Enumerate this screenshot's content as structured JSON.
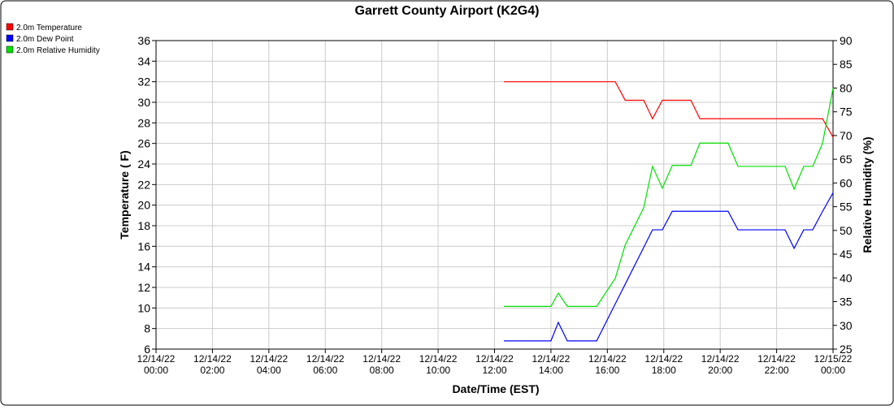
{
  "chart_data": {
    "type": "line",
    "title": "Garrett County Airport (K2G4)",
    "x_label": "Date/Time (EST)",
    "y_label": "Temperature ( F)",
    "y2_label": "Relative Humidity (%)",
    "x": [
      12.33,
      14.0,
      14.26,
      14.58,
      15.62,
      16.28,
      16.63,
      17.29,
      17.6,
      17.95,
      18.3,
      18.96,
      19.28,
      20.28,
      20.63,
      22.3,
      22.62,
      22.96,
      23.28,
      23.63,
      24
    ],
    "series": [
      {
        "name": "2.0m Temperature",
        "color": "#ff0000",
        "values": [
          32,
          32,
          32,
          32,
          32,
          32,
          30.2,
          30.2,
          28.4,
          30.2,
          30.2,
          30.2,
          28.4,
          28.4,
          28.4,
          28.4,
          28.4,
          28.4,
          28.4,
          28.4,
          26.6
        ]
      },
      {
        "name": "2.0m Dew Point",
        "color": "#0000ff",
        "values": [
          6.8,
          6.8,
          8.6,
          6.8,
          6.8,
          10.4,
          12.3,
          15.9,
          17.6,
          17.6,
          19.4,
          19.4,
          19.4,
          19.4,
          17.6,
          17.6,
          15.8,
          17.6,
          17.6,
          19.4,
          21.2
        ]
      },
      {
        "name": "2.0m Relative Humidity",
        "color": "#00e000",
        "axis": "y2",
        "values": [
          34,
          34,
          36.8,
          34,
          34,
          39.9,
          46.9,
          54.8,
          63.5,
          58.9,
          63.7,
          63.7,
          68.4,
          68.4,
          63.5,
          63.5,
          58.7,
          63.5,
          63.5,
          68.4,
          80
        ]
      }
    ],
    "xlim": [
      0,
      24
    ],
    "xticks": [
      {
        "value": 0,
        "label": "12/14/22 00:00"
      },
      {
        "value": 2,
        "label": "12/14/22 02:00"
      },
      {
        "value": 4,
        "label": "12/14/22 04:00"
      },
      {
        "value": 6,
        "label": "12/14/22 06:00"
      },
      {
        "value": 8,
        "label": "12/14/22 08:00"
      },
      {
        "value": 10,
        "label": "12/14/22 10:00"
      },
      {
        "value": 12,
        "label": "12/14/22 12:00"
      },
      {
        "value": 14,
        "label": "12/14/22 14:00"
      },
      {
        "value": 16,
        "label": "12/14/22 16:00"
      },
      {
        "value": 18,
        "label": "12/14/22 18:00"
      },
      {
        "value": 20,
        "label": "12/14/22 20:00"
      },
      {
        "value": 22,
        "label": "12/14/22 22:00"
      },
      {
        "value": 24,
        "label": "12/15/22 00:00"
      }
    ],
    "ylim": [
      6,
      36
    ],
    "yticks": [
      6,
      8,
      10,
      12,
      14,
      16,
      18,
      20,
      22,
      24,
      26,
      28,
      30,
      32,
      34,
      36
    ],
    "y2lim": [
      25,
      90
    ],
    "y2ticks": [
      25,
      30,
      35,
      40,
      45,
      50,
      55,
      60,
      65,
      70,
      75,
      80,
      85,
      90
    ],
    "grid": true,
    "legend": "top-left"
  }
}
